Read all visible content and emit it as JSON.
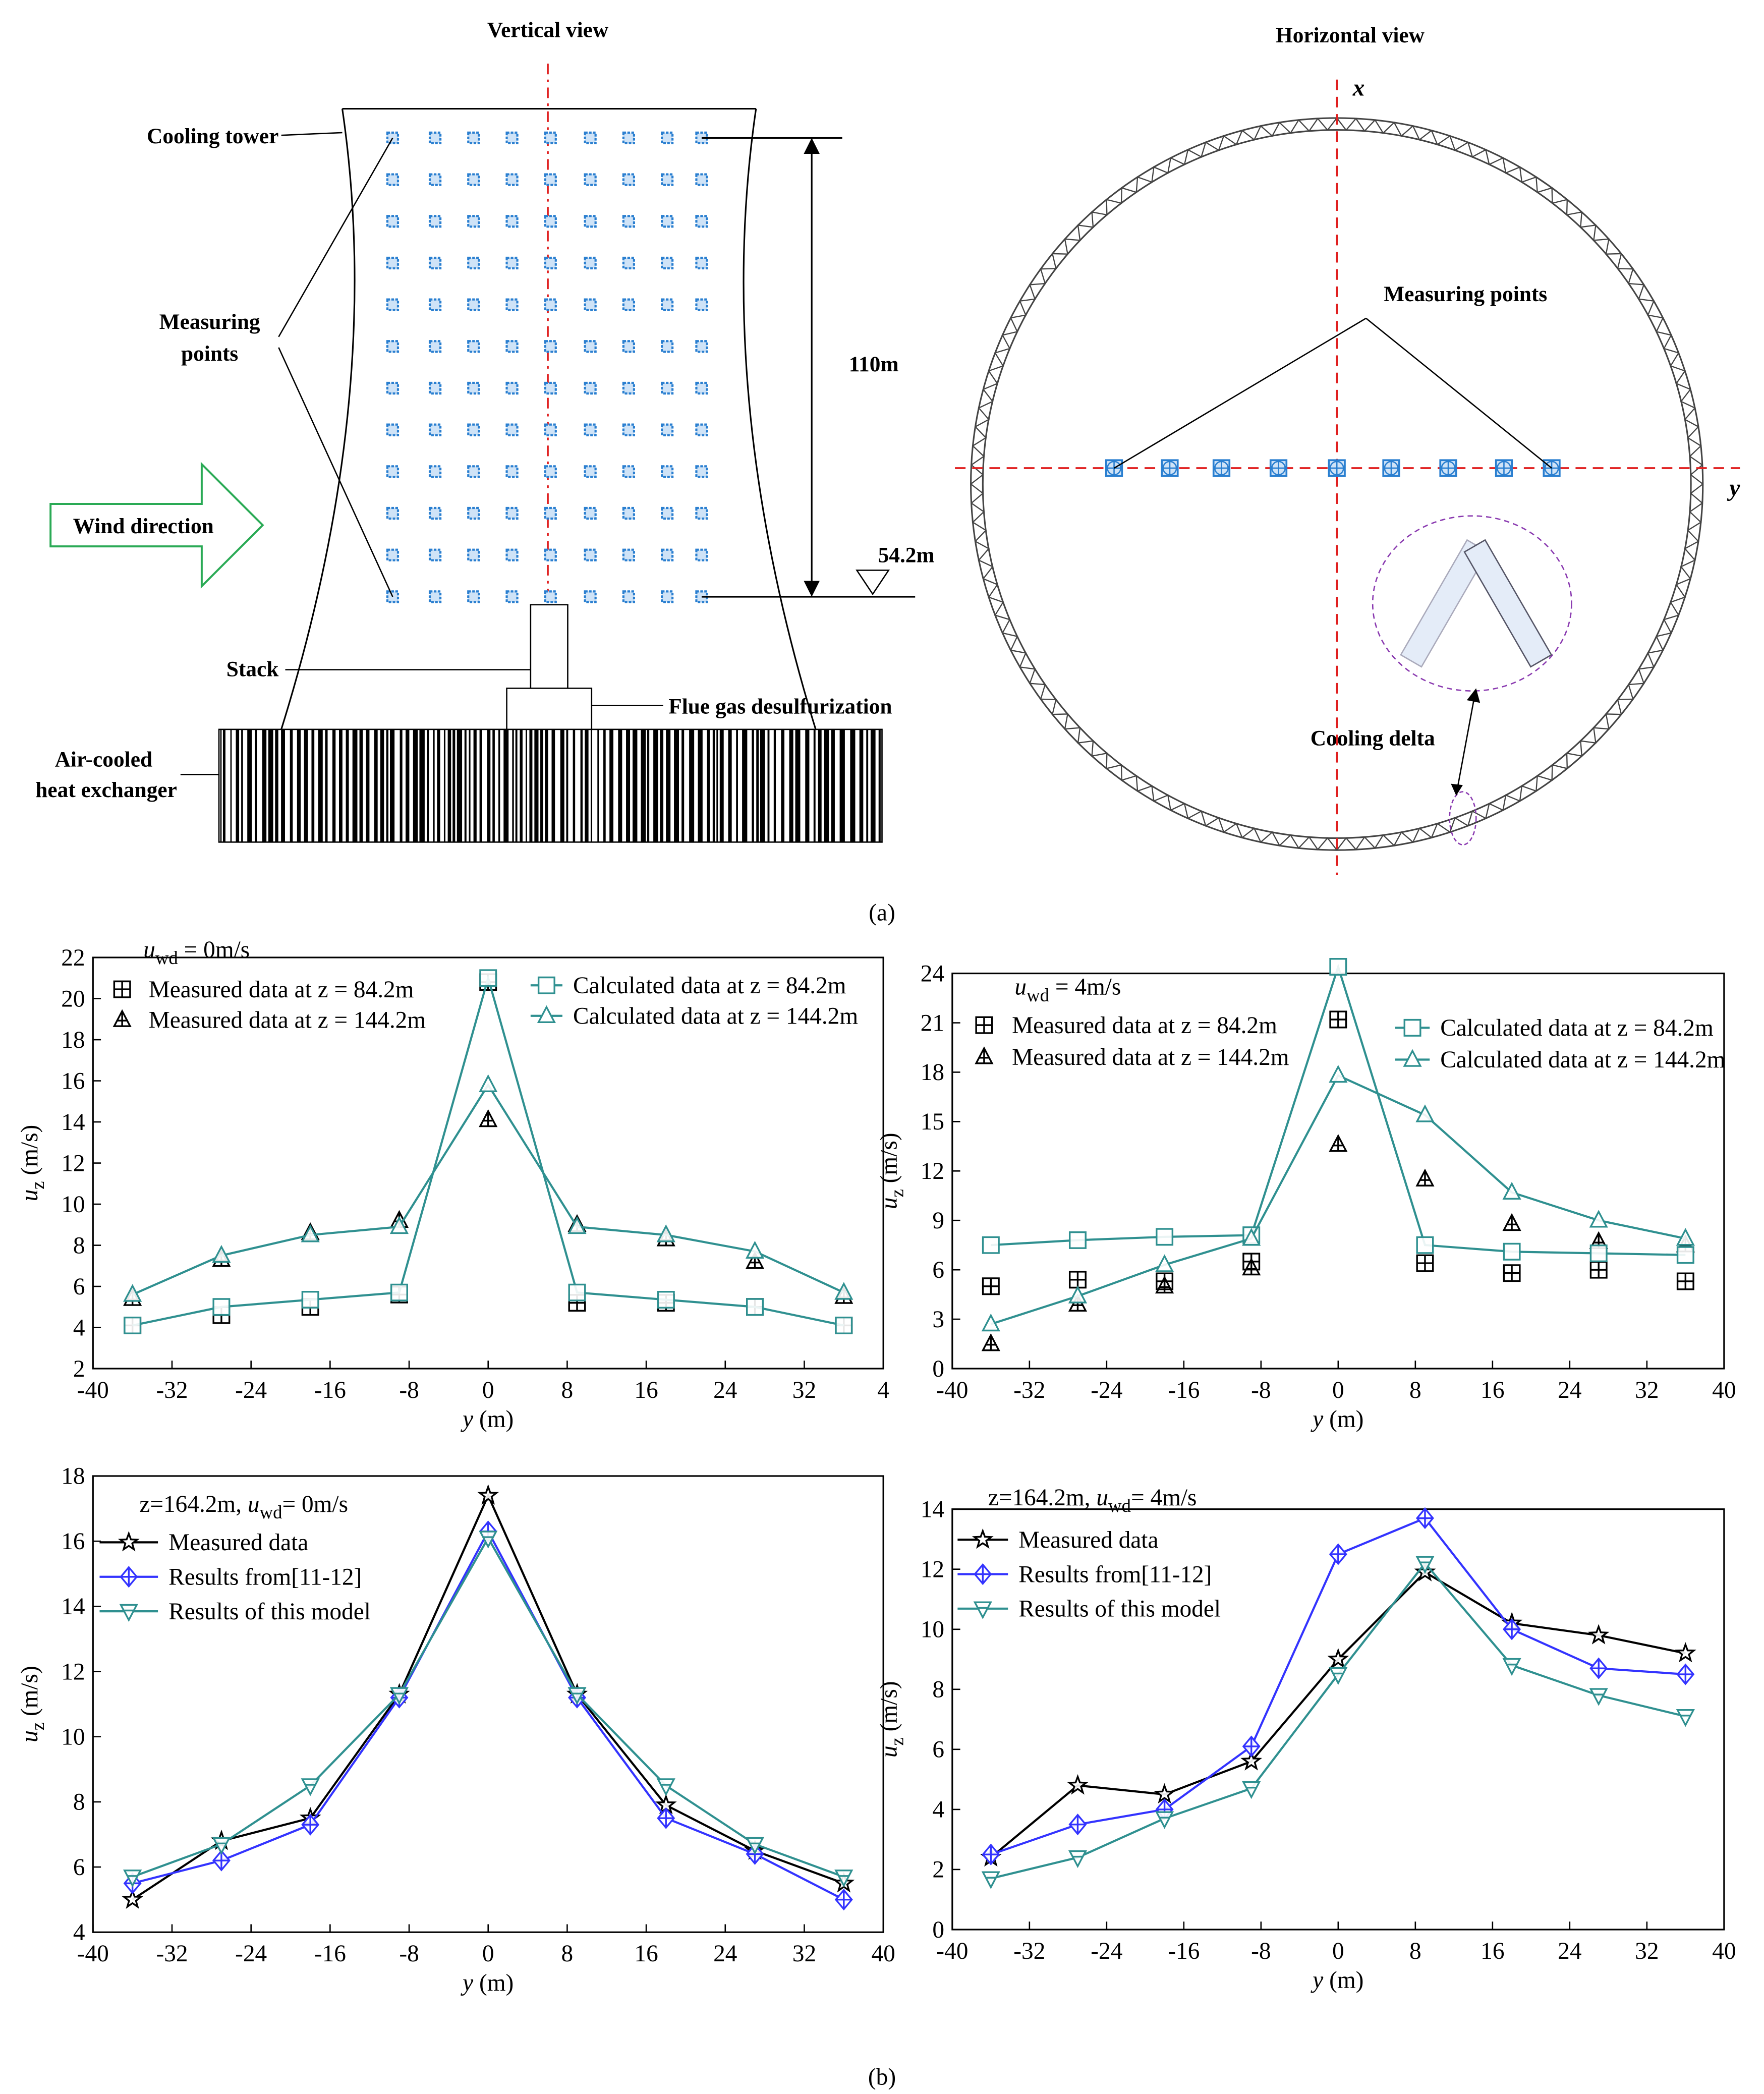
{
  "diagram": {
    "panel_label": "(a)",
    "vertical_view": {
      "title": "Vertical view",
      "cooling_tower": "Cooling tower",
      "measuring_points": [
        "Measuring",
        "points"
      ],
      "height": "110m",
      "level": "54.2m",
      "wind": "Wind direction",
      "stack": "Stack",
      "fgd": "Flue gas desulfurization",
      "heat_exchanger": [
        "Air-cooled",
        "heat exchanger"
      ]
    },
    "horizontal_view": {
      "title": "Horizontal view",
      "x_axis": "x",
      "y_axis": "y",
      "measuring_points": "Measuring points",
      "cooling_delta": "Cooling delta"
    }
  },
  "panel_b_label": "(b)",
  "chart_data": [
    {
      "type": "line",
      "x": [
        -36,
        -27,
        -18,
        -9,
        0,
        9,
        18,
        27,
        36
      ],
      "xlim": [
        -40,
        40
      ],
      "xticks": [
        -40,
        -32,
        -24,
        -16,
        -8,
        0,
        8,
        16,
        24,
        32,
        {
          "value": 40,
          "label": "4"
        }
      ],
      "ylim": [
        2,
        22
      ],
      "yticks": [
        2,
        4,
        6,
        8,
        10,
        12,
        14,
        16,
        18,
        20,
        22
      ],
      "xlabel": {
        "symbol": "y",
        "unit": " (m)"
      },
      "ylabel": {
        "symbol": "u",
        "sub": "z",
        "unit": " (m/s)"
      },
      "annotation": {
        "symbol": "u",
        "sub": "wd",
        "post": " = 0m/s"
      },
      "series": [
        {
          "name": "Measured data at z = 84.2m",
          "color": "#000000",
          "marker": "square-plus",
          "line": false,
          "values": [
            4.1,
            4.6,
            5.0,
            5.6,
            20.8,
            5.2,
            5.2,
            5.0,
            4.1
          ]
        },
        {
          "name": "Measured data at z = 144.2m",
          "color": "#000000",
          "marker": "triangle-plus",
          "line": false,
          "values": [
            5.4,
            7.3,
            8.6,
            9.2,
            14.1,
            9.0,
            8.3,
            7.2,
            5.5
          ]
        },
        {
          "name": "Calculated data at z = 84.2m",
          "color": "#2f9090",
          "marker": "square",
          "line": true,
          "values": [
            4.1,
            5.0,
            5.35,
            5.7,
            21.0,
            5.7,
            5.35,
            5.0,
            4.1
          ]
        },
        {
          "name": "Calculated data at z = 144.2m",
          "color": "#2f9090",
          "marker": "triangle",
          "line": true,
          "values": [
            5.6,
            7.5,
            8.5,
            8.9,
            15.8,
            8.9,
            8.5,
            7.7,
            5.7
          ]
        }
      ]
    },
    {
      "type": "line",
      "x": [
        -36,
        -27,
        -18,
        -9,
        0,
        9,
        18,
        27,
        36
      ],
      "xlim": [
        -40,
        40
      ],
      "xticks": [
        -40,
        -32,
        -24,
        -16,
        -8,
        0,
        8,
        16,
        24,
        32,
        40
      ],
      "ylim": [
        0,
        24
      ],
      "yticks": [
        0,
        3,
        6,
        9,
        12,
        15,
        18,
        21,
        24
      ],
      "xlabel": {
        "symbol": "y",
        "unit": " (m)"
      },
      "ylabel": {
        "symbol": "u",
        "sub": "z",
        "unit": " (m/s)"
      },
      "annotation": {
        "symbol": "u",
        "sub": "wd",
        "post": " = 4m/s"
      },
      "series": [
        {
          "name": "Measured data at z = 84.2m",
          "color": "#000000",
          "marker": "square-plus",
          "line": false,
          "values": [
            5.0,
            5.4,
            5.3,
            6.5,
            21.2,
            6.4,
            5.8,
            6.0,
            5.3
          ]
        },
        {
          "name": "Measured data at z = 144.2m",
          "color": "#000000",
          "marker": "triangle-plus",
          "line": false,
          "values": [
            1.5,
            3.9,
            5.0,
            6.1,
            13.6,
            11.5,
            8.8,
            7.7,
            7.5
          ]
        },
        {
          "name": "Calculated data at z = 84.2m",
          "color": "#2f9090",
          "marker": "square",
          "line": true,
          "values": [
            7.5,
            7.8,
            8.0,
            8.1,
            24.4,
            7.5,
            7.1,
            7.0,
            6.9
          ]
        },
        {
          "name": "Calculated data at z = 144.2m",
          "color": "#2f9090",
          "marker": "triangle",
          "line": true,
          "values": [
            2.7,
            4.4,
            6.3,
            7.9,
            17.8,
            15.4,
            10.7,
            9.0,
            7.9
          ]
        }
      ]
    },
    {
      "type": "line",
      "x": [
        -36,
        -27,
        -18,
        -9,
        0,
        9,
        18,
        27,
        36
      ],
      "xlim": [
        -40,
        40
      ],
      "xticks": [
        -40,
        -32,
        -24,
        -16,
        -8,
        0,
        8,
        16,
        24,
        32,
        40
      ],
      "ylim": [
        4,
        18
      ],
      "yticks": [
        4,
        6,
        8,
        10,
        12,
        14,
        16,
        18
      ],
      "xlabel": {
        "symbol": "y",
        "unit": " (m)"
      },
      "ylabel": {
        "symbol": "u",
        "sub": "z",
        "unit": " (m/s)"
      },
      "annotation": {
        "pre": "z=164.2m, ",
        "symbol": "u",
        "sub": "wd",
        "post": "= 0m/s"
      },
      "series": [
        {
          "name": "Measured data",
          "color": "#000000",
          "marker": "star",
          "line": true,
          "values": [
            5.0,
            6.8,
            7.5,
            11.3,
            17.4,
            11.3,
            7.9,
            6.5,
            5.5
          ]
        },
        {
          "name": "Results from[11-12]",
          "color": "#3333ff",
          "marker": "diamond-plus",
          "line": true,
          "values": [
            5.5,
            6.2,
            7.3,
            11.2,
            16.3,
            11.2,
            7.5,
            6.4,
            5.0
          ]
        },
        {
          "name": "Results of this model",
          "color": "#2f9090",
          "marker": "triangle-down",
          "line": true,
          "values": [
            5.7,
            6.7,
            8.5,
            11.3,
            16.1,
            11.3,
            8.5,
            6.7,
            5.7
          ]
        }
      ]
    },
    {
      "type": "line",
      "x": [
        -36,
        -27,
        -18,
        -9,
        0,
        9,
        18,
        27,
        36
      ],
      "xlim": [
        -40,
        40
      ],
      "xticks": [
        -40,
        -32,
        -24,
        -16,
        -8,
        0,
        8,
        16,
        24,
        32,
        40
      ],
      "ylim": [
        0,
        14
      ],
      "yticks": [
        0,
        2,
        4,
        6,
        8,
        10,
        12,
        14
      ],
      "xlabel": {
        "symbol": "y",
        "unit": " (m)"
      },
      "ylabel": {
        "symbol": "u",
        "sub": "z",
        "unit": " (m/s)"
      },
      "annotation": {
        "pre": "z=164.2m, ",
        "symbol": "u",
        "sub": "wd",
        "post": "= 4m/s"
      },
      "series": [
        {
          "name": "Measured data",
          "color": "#000000",
          "marker": "star",
          "line": true,
          "values": [
            2.4,
            4.8,
            4.5,
            5.6,
            9.0,
            11.9,
            10.2,
            9.8,
            9.2
          ]
        },
        {
          "name": "Results from[11-12]",
          "color": "#3333ff",
          "marker": "diamond-plus",
          "line": true,
          "values": [
            2.5,
            3.5,
            4.0,
            6.1,
            12.5,
            13.7,
            10.0,
            8.7,
            8.5
          ]
        },
        {
          "name": "Results of this model",
          "color": "#2f9090",
          "marker": "triangle-down",
          "line": true,
          "values": [
            1.7,
            2.4,
            3.7,
            4.7,
            8.5,
            12.2,
            8.8,
            7.8,
            7.1
          ]
        }
      ]
    }
  ]
}
